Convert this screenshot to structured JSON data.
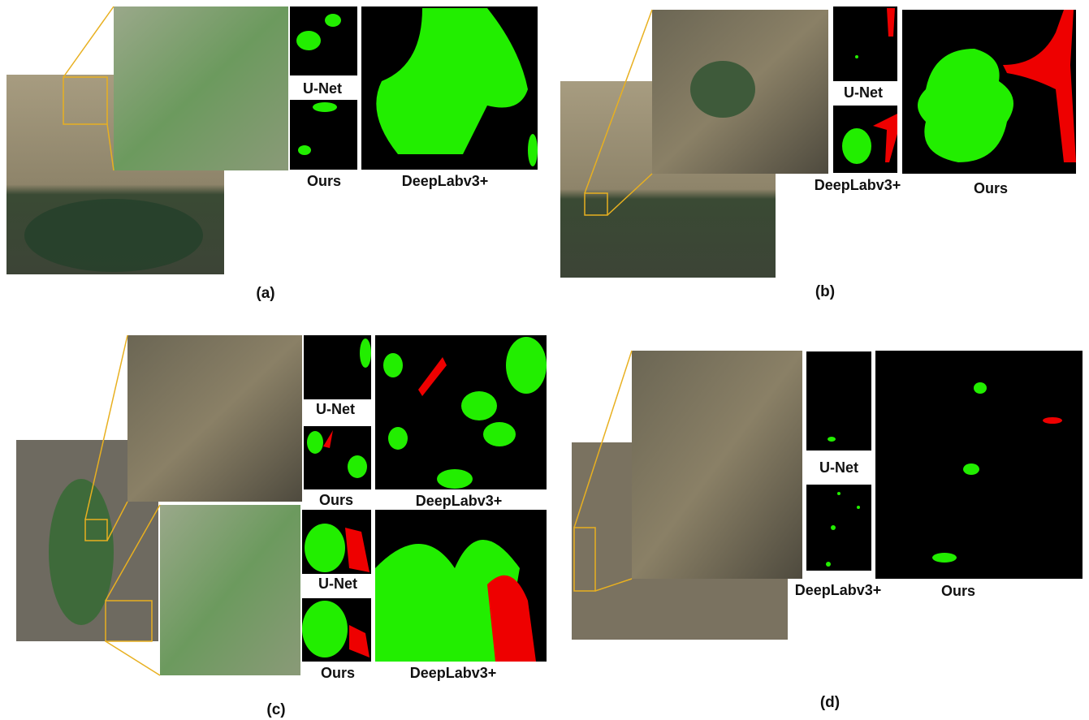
{
  "panels": [
    {
      "caption": "(a)",
      "labels": [
        "U-Net",
        "Ours",
        "DeepLabv3+"
      ]
    },
    {
      "caption": "(b)",
      "labels": [
        "U-Net",
        "DeepLabv3+",
        "Ours"
      ]
    },
    {
      "caption": "(c)",
      "labels": [
        "U-Net",
        "Ours",
        "DeepLabv3+",
        "U-Net",
        "Ours",
        "DeepLabv3+"
      ]
    },
    {
      "caption": "(d)",
      "labels": [
        "U-Net",
        "DeepLabv3+",
        "Ours"
      ]
    }
  ]
}
